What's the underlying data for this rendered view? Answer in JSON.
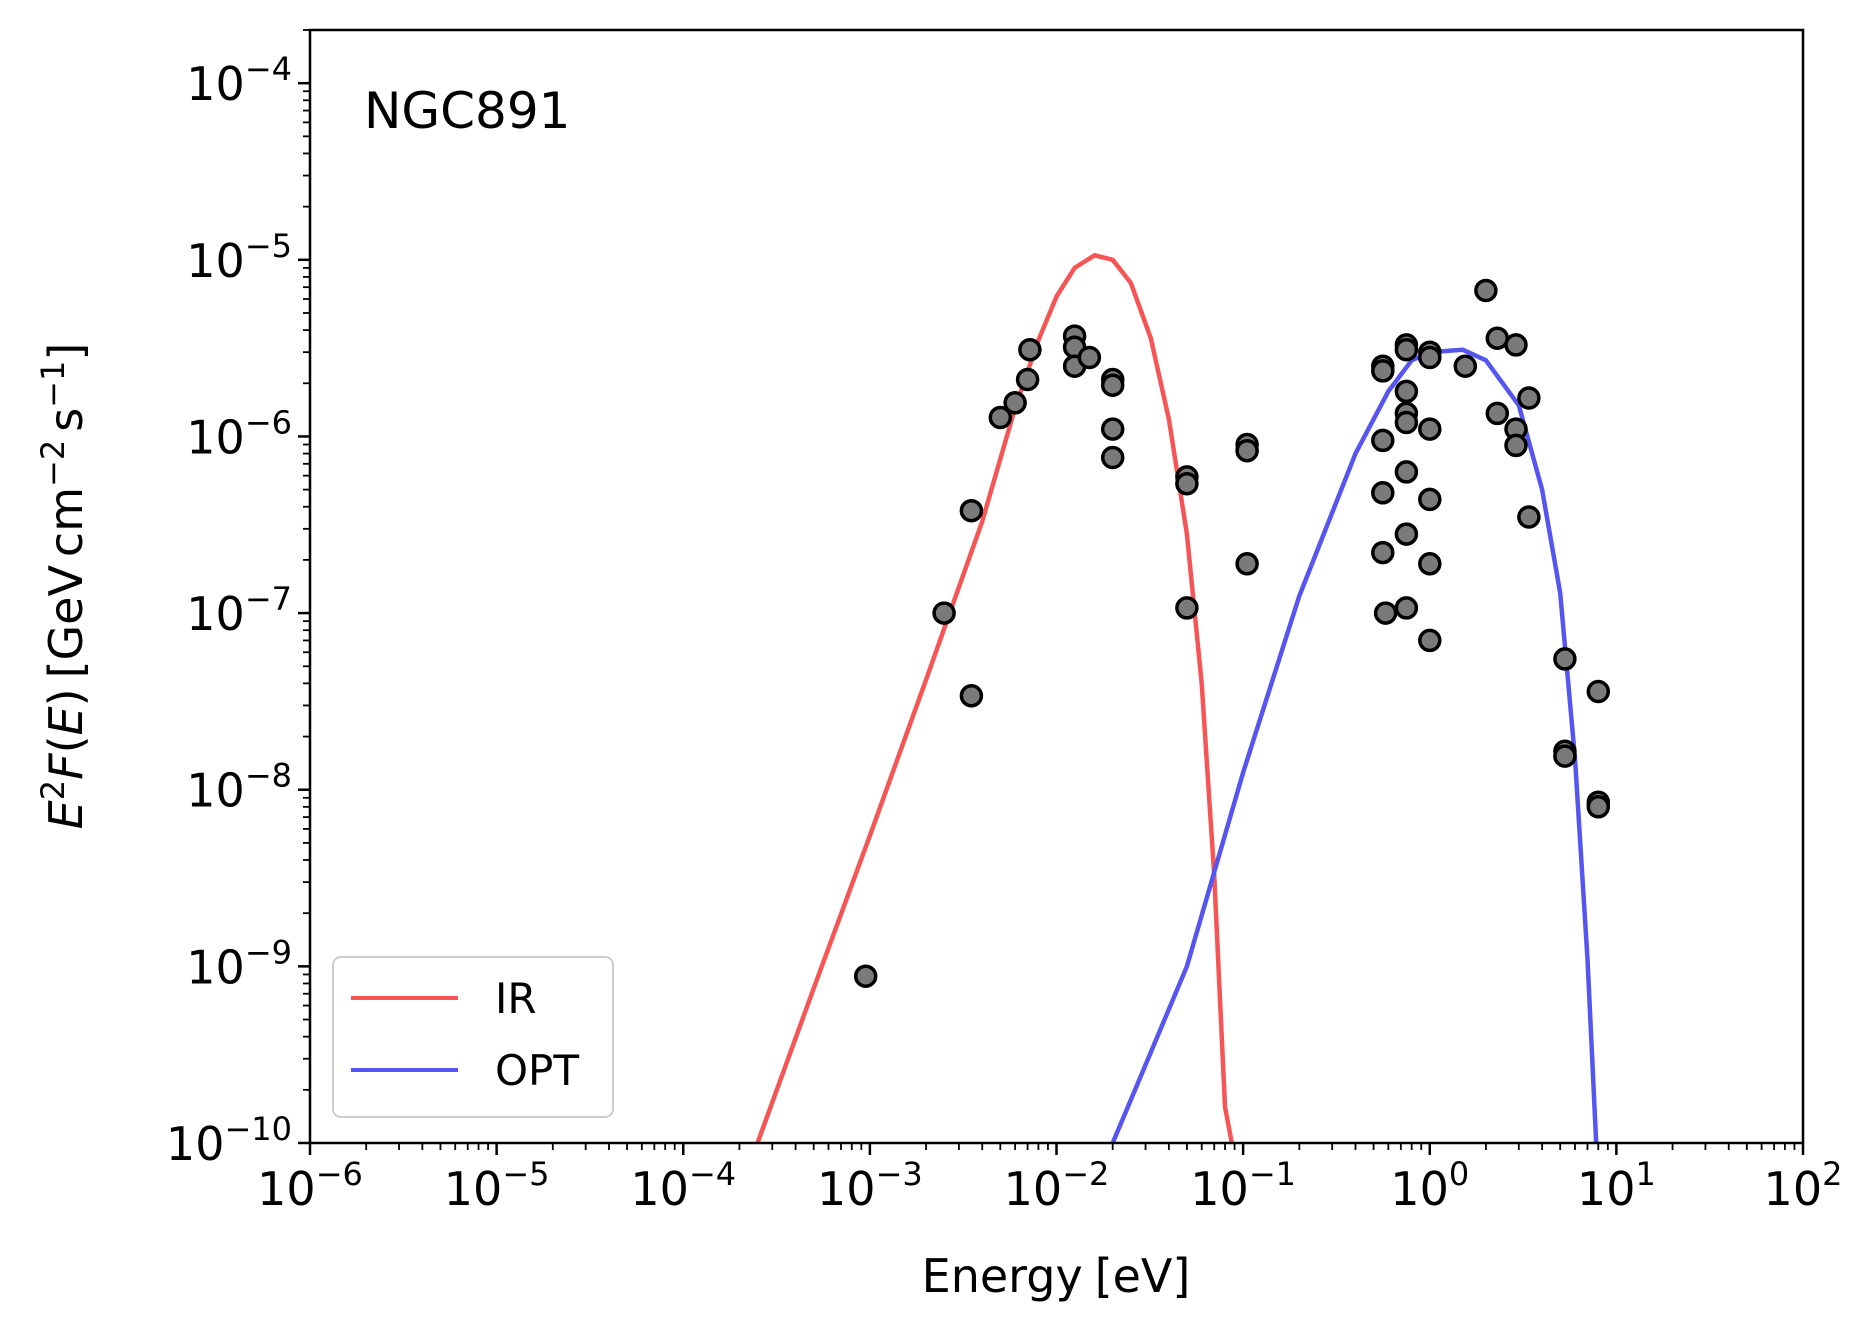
{
  "chart_data": {
    "type": "scatter",
    "annotation": "NGC891",
    "x_scale": "log",
    "y_scale": "log",
    "xlim": [
      1e-06,
      100
    ],
    "ylim": [
      1e-10,
      0.0002
    ],
    "grid": false,
    "legend_position": "bottom-left",
    "xlabel": {
      "text": "Energy",
      "unit": "[eV]"
    },
    "ylabel": {
      "func": "E",
      "sup1": "2",
      "func2": "F",
      "open": "(",
      "var": "E",
      "close": ")",
      "bra": "[",
      "u1": "GeV",
      "u2": "cm",
      "sup2": "−2",
      "u3": "s",
      "sup3": "−1",
      "ket": "]"
    },
    "x_ticks": [
      {
        "value": 1e-06,
        "base": "10",
        "exp": "−6"
      },
      {
        "value": 1e-05,
        "base": "10",
        "exp": "−5"
      },
      {
        "value": 0.0001,
        "base": "10",
        "exp": "−4"
      },
      {
        "value": 0.001,
        "base": "10",
        "exp": "−3"
      },
      {
        "value": 0.01,
        "base": "10",
        "exp": "−2"
      },
      {
        "value": 0.1,
        "base": "10",
        "exp": "−1"
      },
      {
        "value": 1,
        "base": "10",
        "exp": "0"
      },
      {
        "value": 10,
        "base": "10",
        "exp": "1"
      },
      {
        "value": 100,
        "base": "10",
        "exp": "2"
      }
    ],
    "y_ticks": [
      {
        "value": 1e-10,
        "base": "10",
        "exp": "−10"
      },
      {
        "value": 1e-09,
        "base": "10",
        "exp": "−9"
      },
      {
        "value": 1e-08,
        "base": "10",
        "exp": "−8"
      },
      {
        "value": 1e-07,
        "base": "10",
        "exp": "−7"
      },
      {
        "value": 1e-06,
        "base": "10",
        "exp": "−6"
      },
      {
        "value": 1e-05,
        "base": "10",
        "exp": "−5"
      },
      {
        "value": 0.0001,
        "base": "10",
        "exp": "−4"
      }
    ],
    "series": [
      {
        "name": "IR",
        "kind": "line",
        "color": "#f55555",
        "points": [
          [
            0.00025,
            1e-10
          ],
          [
            0.0005,
            7.5e-10
          ],
          [
            0.001,
            5.5e-09
          ],
          [
            0.002,
            4.2e-08
          ],
          [
            0.004,
            3.3e-07
          ],
          [
            0.006,
            1.45e-06
          ],
          [
            0.008,
            3.5e-06
          ],
          [
            0.01,
            6.2e-06
          ],
          [
            0.0125,
            9e-06
          ],
          [
            0.016,
            1.06e-05
          ],
          [
            0.02,
            1e-05
          ],
          [
            0.025,
            7.4e-06
          ],
          [
            0.032,
            3.6e-06
          ],
          [
            0.04,
            1.25e-06
          ],
          [
            0.05,
            2.8e-07
          ],
          [
            0.06,
            4e-08
          ],
          [
            0.07,
            3.3e-09
          ],
          [
            0.08,
            1.6e-10
          ],
          [
            0.087,
            1e-10
          ]
        ]
      },
      {
        "name": "OPT",
        "kind": "line",
        "color": "#5555f0",
        "points": [
          [
            0.02,
            1e-10
          ],
          [
            0.05,
            1e-09
          ],
          [
            0.1,
            1.25e-08
          ],
          [
            0.2,
            1.25e-07
          ],
          [
            0.4,
            8e-07
          ],
          [
            0.6,
            1.8e-06
          ],
          [
            0.8,
            2.7e-06
          ],
          [
            1.0,
            3e-06
          ],
          [
            1.5,
            3.1e-06
          ],
          [
            2.0,
            2.7e-06
          ],
          [
            3.0,
            1.5e-06
          ],
          [
            4.0,
            5e-07
          ],
          [
            5.0,
            1.3e-07
          ],
          [
            6.0,
            1.5e-08
          ],
          [
            7.0,
            1.1e-09
          ],
          [
            7.8,
            1e-10
          ]
        ]
      },
      {
        "name": "",
        "kind": "scatter",
        "color": "#7a7a7a",
        "points": [
          [
            0.00095,
            8.8e-10
          ],
          [
            0.0025,
            1e-07
          ],
          [
            0.0035,
            3.8e-07
          ],
          [
            0.0035,
            3.4e-08
          ],
          [
            0.005,
            1.28e-06
          ],
          [
            0.006,
            1.55e-06
          ],
          [
            0.007,
            2.1e-06
          ],
          [
            0.0072,
            3.1e-06
          ],
          [
            0.0125,
            3.7e-06
          ],
          [
            0.0125,
            3.2e-06
          ],
          [
            0.0125,
            2.5e-06
          ],
          [
            0.015,
            2.8e-06
          ],
          [
            0.02,
            2.1e-06
          ],
          [
            0.02,
            1.95e-06
          ],
          [
            0.02,
            1.1e-06
          ],
          [
            0.02,
            7.6e-07
          ],
          [
            0.05,
            5.9e-07
          ],
          [
            0.05,
            5.4e-07
          ],
          [
            0.05,
            1.07e-07
          ],
          [
            0.105,
            9e-07
          ],
          [
            0.105,
            8.3e-07
          ],
          [
            0.105,
            1.9e-07
          ],
          [
            0.56,
            2.5e-06
          ],
          [
            0.56,
            2.35e-06
          ],
          [
            0.56,
            9.5e-07
          ],
          [
            0.56,
            4.8e-07
          ],
          [
            0.56,
            2.2e-07
          ],
          [
            0.58,
            1e-07
          ],
          [
            0.75,
            3.3e-06
          ],
          [
            0.75,
            3.1e-06
          ],
          [
            0.75,
            1.8e-06
          ],
          [
            0.75,
            1.35e-06
          ],
          [
            0.75,
            1.2e-06
          ],
          [
            0.75,
            6.3e-07
          ],
          [
            0.75,
            2.8e-07
          ],
          [
            0.75,
            1.07e-07
          ],
          [
            1.0,
            3e-06
          ],
          [
            1.0,
            2.8e-06
          ],
          [
            1.0,
            1.1e-06
          ],
          [
            1.0,
            4.4e-07
          ],
          [
            1.0,
            1.9e-07
          ],
          [
            1.0,
            7e-08
          ],
          [
            1.55,
            2.5e-06
          ],
          [
            2.0,
            6.7e-06
          ],
          [
            2.3,
            3.6e-06
          ],
          [
            2.3,
            1.35e-06
          ],
          [
            2.9,
            3.3e-06
          ],
          [
            2.9,
            1.1e-06
          ],
          [
            2.9,
            8.9e-07
          ],
          [
            3.4,
            1.65e-06
          ],
          [
            3.4,
            3.5e-07
          ],
          [
            5.3,
            5.5e-08
          ],
          [
            5.3,
            1.65e-08
          ],
          [
            5.3,
            1.55e-08
          ],
          [
            8.0,
            3.6e-08
          ],
          [
            8.0,
            8.5e-09
          ],
          [
            8.0,
            8e-09
          ]
        ]
      }
    ]
  }
}
